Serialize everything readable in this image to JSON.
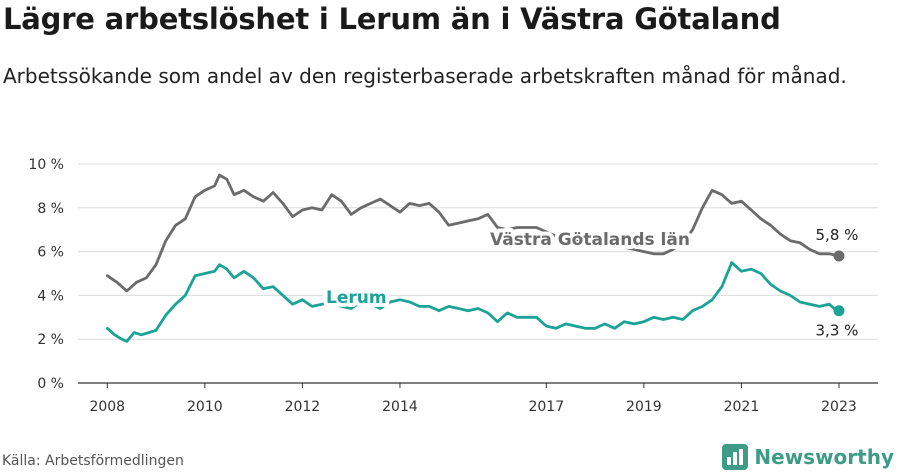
{
  "title": "Lägre arbetslöshet i Lerum än i Västra Götaland",
  "subtitle": "Arbetssökande som andel av den registerbaserade arbetskraften månad för månad.",
  "source": "Källa: Arbetsförmedlingen",
  "brand": {
    "name": "Newsworthy",
    "icon": "bar-chart-logo-icon"
  },
  "colors": {
    "vg": "#6b6b6b",
    "lerum": "#1aa396",
    "grid": "#dcdcdc",
    "brand": "#3e9b86"
  },
  "chart_data": {
    "type": "line",
    "title": "Lägre arbetslöshet i Lerum än i Västra Götaland",
    "ylim": [
      0,
      10
    ],
    "xlim": [
      2007.4,
      2023.8
    ],
    "grid": true,
    "y_ticks": [
      0,
      2,
      4,
      6,
      8,
      10
    ],
    "y_tick_labels": [
      "0 %",
      "2 %",
      "4 %",
      "6 %",
      "8 %",
      "10 %"
    ],
    "x_ticks": [
      2008,
      2010,
      2012,
      2014,
      2017,
      2019,
      2021,
      2023
    ],
    "x_tick_labels": [
      "2008",
      "2010",
      "2012",
      "2014",
      "2017",
      "2019",
      "2021",
      "2023"
    ],
    "series": [
      {
        "name": "Västra Götalands län",
        "color": "#6b6b6b",
        "end_label": "5,8 %",
        "points": [
          [
            2008.0,
            4.9
          ],
          [
            2008.2,
            4.6
          ],
          [
            2008.4,
            4.2
          ],
          [
            2008.6,
            4.6
          ],
          [
            2008.8,
            4.8
          ],
          [
            2009.0,
            5.4
          ],
          [
            2009.2,
            6.5
          ],
          [
            2009.4,
            7.2
          ],
          [
            2009.6,
            7.5
          ],
          [
            2009.8,
            8.5
          ],
          [
            2010.0,
            8.8
          ],
          [
            2010.2,
            9.0
          ],
          [
            2010.3,
            9.5
          ],
          [
            2010.45,
            9.3
          ],
          [
            2010.6,
            8.6
          ],
          [
            2010.8,
            8.8
          ],
          [
            2011.0,
            8.5
          ],
          [
            2011.2,
            8.3
          ],
          [
            2011.4,
            8.7
          ],
          [
            2011.6,
            8.2
          ],
          [
            2011.8,
            7.6
          ],
          [
            2012.0,
            7.9
          ],
          [
            2012.2,
            8.0
          ],
          [
            2012.4,
            7.9
          ],
          [
            2012.6,
            8.6
          ],
          [
            2012.8,
            8.3
          ],
          [
            2013.0,
            7.7
          ],
          [
            2013.2,
            8.0
          ],
          [
            2013.4,
            8.2
          ],
          [
            2013.6,
            8.4
          ],
          [
            2013.8,
            8.1
          ],
          [
            2014.0,
            7.8
          ],
          [
            2014.2,
            8.2
          ],
          [
            2014.4,
            8.1
          ],
          [
            2014.6,
            8.2
          ],
          [
            2014.8,
            7.8
          ],
          [
            2015.0,
            7.2
          ],
          [
            2015.2,
            7.3
          ],
          [
            2015.4,
            7.4
          ],
          [
            2015.6,
            7.5
          ],
          [
            2015.8,
            7.7
          ],
          [
            2016.0,
            7.1
          ],
          [
            2016.2,
            7.0
          ],
          [
            2016.4,
            7.1
          ],
          [
            2016.6,
            7.1
          ],
          [
            2016.8,
            7.1
          ],
          [
            2017.0,
            6.9
          ],
          [
            2017.2,
            6.7
          ],
          [
            2017.4,
            6.6
          ],
          [
            2017.6,
            6.5
          ],
          [
            2017.8,
            6.3
          ],
          [
            2018.0,
            6.4
          ],
          [
            2018.2,
            6.3
          ],
          [
            2018.4,
            6.2
          ],
          [
            2018.6,
            6.2
          ],
          [
            2018.8,
            6.1
          ],
          [
            2019.0,
            6.0
          ],
          [
            2019.2,
            5.9
          ],
          [
            2019.4,
            5.9
          ],
          [
            2019.6,
            6.1
          ],
          [
            2019.8,
            6.4
          ],
          [
            2020.0,
            7.0
          ],
          [
            2020.2,
            8.0
          ],
          [
            2020.4,
            8.8
          ],
          [
            2020.6,
            8.6
          ],
          [
            2020.8,
            8.2
          ],
          [
            2021.0,
            8.3
          ],
          [
            2021.2,
            7.9
          ],
          [
            2021.4,
            7.5
          ],
          [
            2021.6,
            7.2
          ],
          [
            2021.8,
            6.8
          ],
          [
            2022.0,
            6.5
          ],
          [
            2022.2,
            6.4
          ],
          [
            2022.4,
            6.1
          ],
          [
            2022.6,
            5.9
          ],
          [
            2022.8,
            5.9
          ],
          [
            2023.0,
            5.8
          ]
        ]
      },
      {
        "name": "Lerum",
        "color": "#1aa396",
        "end_label": "3,3 %",
        "points": [
          [
            2008.0,
            2.5
          ],
          [
            2008.15,
            2.2
          ],
          [
            2008.3,
            2.0
          ],
          [
            2008.4,
            1.9
          ],
          [
            2008.55,
            2.3
          ],
          [
            2008.7,
            2.2
          ],
          [
            2008.85,
            2.3
          ],
          [
            2009.0,
            2.4
          ],
          [
            2009.2,
            3.1
          ],
          [
            2009.4,
            3.6
          ],
          [
            2009.6,
            4.0
          ],
          [
            2009.8,
            4.9
          ],
          [
            2010.0,
            5.0
          ],
          [
            2010.2,
            5.1
          ],
          [
            2010.3,
            5.4
          ],
          [
            2010.45,
            5.2
          ],
          [
            2010.6,
            4.8
          ],
          [
            2010.8,
            5.1
          ],
          [
            2011.0,
            4.8
          ],
          [
            2011.2,
            4.3
          ],
          [
            2011.4,
            4.4
          ],
          [
            2011.6,
            4.0
          ],
          [
            2011.8,
            3.6
          ],
          [
            2012.0,
            3.8
          ],
          [
            2012.2,
            3.5
          ],
          [
            2012.4,
            3.6
          ],
          [
            2012.6,
            3.7
          ],
          [
            2012.8,
            3.5
          ],
          [
            2013.0,
            3.4
          ],
          [
            2013.2,
            3.7
          ],
          [
            2013.4,
            3.6
          ],
          [
            2013.6,
            3.4
          ],
          [
            2013.8,
            3.7
          ],
          [
            2014.0,
            3.8
          ],
          [
            2014.2,
            3.7
          ],
          [
            2014.4,
            3.5
          ],
          [
            2014.6,
            3.5
          ],
          [
            2014.8,
            3.3
          ],
          [
            2015.0,
            3.5
          ],
          [
            2015.2,
            3.4
          ],
          [
            2015.4,
            3.3
          ],
          [
            2015.6,
            3.4
          ],
          [
            2015.8,
            3.2
          ],
          [
            2016.0,
            2.8
          ],
          [
            2016.2,
            3.2
          ],
          [
            2016.4,
            3.0
          ],
          [
            2016.6,
            3.0
          ],
          [
            2016.8,
            3.0
          ],
          [
            2017.0,
            2.6
          ],
          [
            2017.2,
            2.5
          ],
          [
            2017.4,
            2.7
          ],
          [
            2017.6,
            2.6
          ],
          [
            2017.8,
            2.5
          ],
          [
            2018.0,
            2.5
          ],
          [
            2018.2,
            2.7
          ],
          [
            2018.4,
            2.5
          ],
          [
            2018.6,
            2.8
          ],
          [
            2018.8,
            2.7
          ],
          [
            2019.0,
            2.8
          ],
          [
            2019.2,
            3.0
          ],
          [
            2019.4,
            2.9
          ],
          [
            2019.6,
            3.0
          ],
          [
            2019.8,
            2.9
          ],
          [
            2020.0,
            3.3
          ],
          [
            2020.2,
            3.5
          ],
          [
            2020.4,
            3.8
          ],
          [
            2020.6,
            4.4
          ],
          [
            2020.8,
            5.5
          ],
          [
            2021.0,
            5.1
          ],
          [
            2021.2,
            5.2
          ],
          [
            2021.4,
            5.0
          ],
          [
            2021.6,
            4.5
          ],
          [
            2021.8,
            4.2
          ],
          [
            2022.0,
            4.0
          ],
          [
            2022.2,
            3.7
          ],
          [
            2022.4,
            3.6
          ],
          [
            2022.6,
            3.5
          ],
          [
            2022.8,
            3.6
          ],
          [
            2022.9,
            3.4
          ],
          [
            2023.0,
            3.3
          ]
        ]
      }
    ]
  }
}
